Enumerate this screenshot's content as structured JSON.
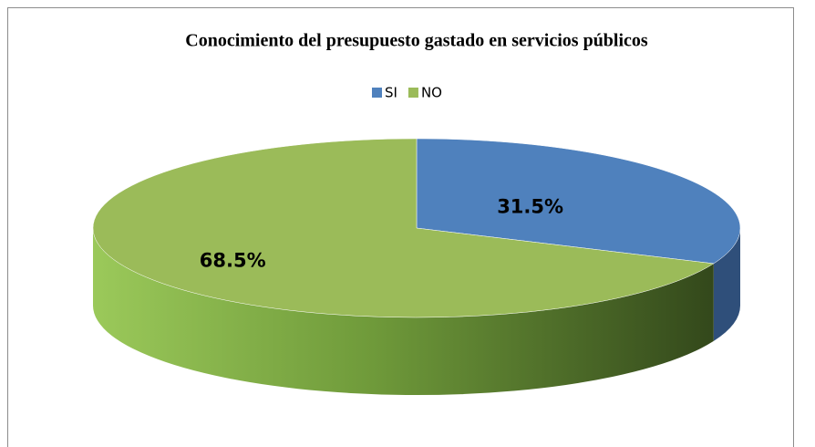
{
  "chart_data": {
    "type": "pie3d",
    "title": "Conocimiento del presupuesto gastado en  servicios públicos",
    "categories": [
      "SI",
      "NO"
    ],
    "values": [
      31.5,
      68.5
    ],
    "value_labels": [
      "31.5%",
      "68.5%"
    ],
    "colors": [
      "#4f81bd",
      "#9bbb59"
    ],
    "legend": "top"
  }
}
